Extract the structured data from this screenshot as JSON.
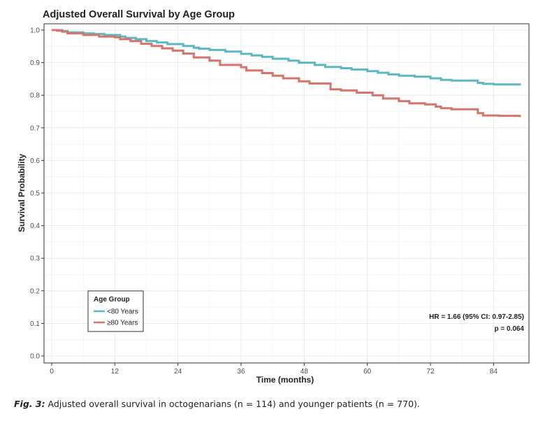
{
  "chart_data": {
    "type": "line",
    "step": true,
    "title": "Adjusted Overall Survival by Age Group",
    "xlabel": "Time (months)",
    "ylabel": "Survival Probability",
    "xlim": [
      0,
      89
    ],
    "ylim": [
      0,
      1
    ],
    "x_ticks": [
      0,
      12,
      24,
      36,
      48,
      60,
      72,
      84
    ],
    "y_ticks": [
      0.0,
      0.1,
      0.2,
      0.3,
      0.4,
      0.5,
      0.6,
      0.7,
      0.8,
      0.9,
      1.0
    ],
    "y_tick_labels": [
      "0.0",
      "0.1",
      "0.2",
      "0.3",
      "0.4",
      "0.5",
      "0.6",
      "0.7",
      "0.8",
      "0.9",
      "1.0"
    ],
    "grid": true,
    "legend": {
      "title": "Age Group",
      "placement": "bottom-left"
    },
    "series": [
      {
        "name": "<80 Years",
        "color": "#5BB8C1",
        "x": [
          0,
          1,
          2,
          3,
          6,
          8,
          10,
          13,
          14,
          16,
          18,
          20,
          22,
          25,
          27,
          28,
          30,
          33,
          36,
          38,
          40,
          42,
          45,
          47,
          50,
          52,
          55,
          57,
          60,
          62,
          64,
          66,
          69,
          72,
          74,
          76,
          80,
          81,
          82,
          84,
          89
        ],
        "y": [
          1.0,
          1.0,
          0.997,
          0.993,
          0.99,
          0.988,
          0.985,
          0.98,
          0.976,
          0.972,
          0.966,
          0.962,
          0.957,
          0.951,
          0.946,
          0.943,
          0.939,
          0.934,
          0.927,
          0.922,
          0.918,
          0.912,
          0.906,
          0.9,
          0.893,
          0.887,
          0.883,
          0.879,
          0.874,
          0.869,
          0.864,
          0.86,
          0.857,
          0.852,
          0.847,
          0.845,
          0.845,
          0.838,
          0.835,
          0.833,
          0.83
        ]
      },
      {
        "name": "≥80 Years",
        "color": "#D4756B",
        "x": [
          0,
          1,
          2,
          3,
          6,
          9,
          12,
          13,
          15,
          17,
          19,
          21,
          23,
          25,
          27,
          30,
          32,
          36,
          37,
          40,
          42,
          44,
          47,
          49,
          53,
          55,
          58,
          61,
          63,
          66,
          68,
          71,
          73,
          74,
          76,
          80,
          81,
          82,
          85,
          89
        ],
        "y": [
          1.0,
          0.998,
          0.995,
          0.99,
          0.985,
          0.98,
          0.978,
          0.972,
          0.966,
          0.958,
          0.951,
          0.944,
          0.937,
          0.928,
          0.916,
          0.906,
          0.893,
          0.886,
          0.876,
          0.868,
          0.86,
          0.852,
          0.843,
          0.836,
          0.818,
          0.815,
          0.808,
          0.8,
          0.79,
          0.782,
          0.775,
          0.772,
          0.765,
          0.76,
          0.757,
          0.757,
          0.745,
          0.738,
          0.737,
          0.733
        ]
      }
    ],
    "annotations": [
      "HR = 1.66 (95% CI: 0.97-2.85)",
      "p = 0.064"
    ]
  },
  "caption": {
    "label": "Fig. 3:",
    "text": " Adjusted overall survival in octogenarians (n = 114) and younger patients (n = 770)."
  }
}
